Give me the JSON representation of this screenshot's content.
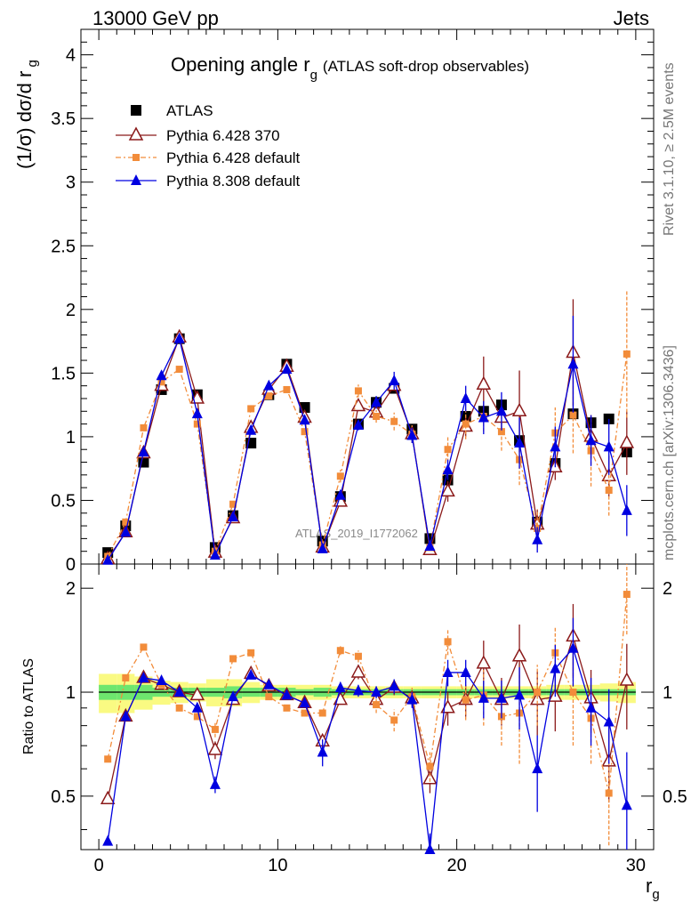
{
  "header": {
    "left": "13000 GeV pp",
    "right": "Jets"
  },
  "side": {
    "upper": "Rivet 3.1.10, ≥ 2.5M events",
    "lower": "mcplots.cern.ch [arXiv:1306.3436]"
  },
  "watermark": "ATLAS_2019_I1772062",
  "colors": {
    "atlas": "#000000",
    "py6_370": "#8b1a1a",
    "py6_default": "#f28c3a",
    "py8_default": "#0000e0",
    "band_inner": "#6ee66e",
    "band_outer": "#fafa82"
  },
  "chart_data": [
    {
      "type": "scatter",
      "title": "Opening angle r",
      "title_sub": "g",
      "title_note": "(ATLAS soft-drop observables)",
      "ylabel": "(1/σ) dσ/d r",
      "ylabel_sub": "g",
      "xlim": [
        -1,
        31
      ],
      "ylim": [
        0,
        4.2
      ],
      "yticks": [
        0,
        0.5,
        1,
        1.5,
        2,
        2.5,
        3,
        3.5,
        4
      ],
      "ytick_labels": [
        "0",
        "0.5",
        "1",
        "1.5",
        "2",
        "2.5",
        "3",
        "3.5",
        "4"
      ],
      "legend_position": "top-left",
      "x": [
        0.5,
        1.5,
        2.5,
        3.5,
        4.5,
        5.5,
        6.5,
        7.5,
        8.5,
        9.5,
        10.5,
        11.5,
        12.5,
        13.5,
        14.5,
        15.5,
        16.5,
        17.5,
        18.5,
        19.5,
        20.5,
        21.5,
        22.5,
        23.5,
        24.5,
        25.5,
        26.5,
        27.5,
        28.5,
        29.5
      ],
      "series": [
        {
          "name": "ATLAS",
          "marker": "square",
          "values": [
            0.09,
            0.3,
            0.8,
            1.37,
            1.77,
            1.33,
            0.13,
            0.38,
            0.95,
            1.33,
            1.57,
            1.23,
            0.18,
            0.53,
            1.1,
            1.27,
            1.38,
            1.06,
            0.2,
            0.66,
            1.16,
            1.2,
            1.25,
            0.97,
            0.33,
            0.79,
            1.18,
            1.11,
            1.14,
            0.88
          ],
          "errors": [
            0,
            0,
            0,
            0,
            0,
            0,
            0,
            0,
            0,
            0,
            0,
            0,
            0,
            0,
            0,
            0,
            0,
            0,
            0,
            0,
            0,
            0,
            0,
            0,
            0,
            0,
            0,
            0,
            0,
            0
          ]
        },
        {
          "name": "Pythia 6.428 370",
          "marker": "open-triangle",
          "values": [
            0.04,
            0.25,
            0.87,
            1.4,
            1.78,
            1.3,
            0.09,
            0.36,
            1.07,
            1.37,
            1.55,
            1.15,
            0.13,
            0.49,
            1.24,
            1.19,
            1.4,
            1.02,
            0.11,
            0.57,
            1.08,
            1.41,
            1.15,
            1.2,
            0.31,
            0.76,
            1.66,
            1.0,
            0.69,
            0.95
          ],
          "errors": [
            0,
            0,
            0,
            0,
            0,
            0,
            0,
            0,
            0,
            0,
            0,
            0,
            0,
            0,
            0,
            0.05,
            0,
            0,
            0,
            0.08,
            0.08,
            0.22,
            0.1,
            0.32,
            0.12,
            0.1,
            0.42,
            0.17,
            0.16,
            0.25
          ]
        },
        {
          "name": "Pythia 6.428 default",
          "marker": "small-square",
          "values": [
            0.06,
            0.33,
            1.07,
            1.43,
            1.53,
            1.1,
            0.1,
            0.47,
            1.22,
            1.32,
            1.37,
            1.04,
            0.15,
            0.69,
            1.36,
            1.16,
            1.12,
            1.02,
            0.13,
            0.9,
            1.1,
            1.16,
            1.04,
            0.82,
            0.28,
            1.03,
            1.17,
            0.89,
            0.58,
            1.65
          ],
          "errors": [
            0,
            0,
            0,
            0,
            0,
            0,
            0,
            0,
            0,
            0,
            0,
            0,
            0,
            0.05,
            0.05,
            0.05,
            0.07,
            0.07,
            0,
            0.1,
            0.12,
            0.12,
            0.15,
            0.2,
            0.15,
            0.2,
            0.3,
            0.28,
            0.2,
            0.5
          ]
        },
        {
          "name": "Pythia 8.308 default",
          "marker": "triangle",
          "values": [
            0.03,
            0.25,
            0.88,
            1.48,
            1.77,
            1.18,
            0.07,
            0.37,
            1.05,
            1.4,
            1.53,
            1.13,
            0.12,
            0.54,
            1.09,
            1.27,
            1.44,
            1.01,
            0.14,
            0.74,
            1.3,
            1.15,
            1.2,
            0.95,
            0.19,
            0.92,
            1.57,
            0.97,
            0.92,
            0.42
          ],
          "errors": [
            0,
            0,
            0,
            0,
            0,
            0,
            0,
            0,
            0,
            0,
            0,
            0,
            0,
            0,
            0.04,
            0.05,
            0.07,
            0.06,
            0,
            0.08,
            0.1,
            0.13,
            0.15,
            0.2,
            0.1,
            0.16,
            0.38,
            0.2,
            0.22,
            0.2
          ]
        }
      ]
    },
    {
      "type": "scatter",
      "ylabel": "Ratio to ATLAS",
      "xlabel": "r",
      "xlabel_sub": "g",
      "xlim": [
        -1,
        31
      ],
      "ylim": [
        0.35,
        2.35
      ],
      "log_scale_y": true,
      "yticks": [
        0.5,
        1,
        2
      ],
      "ytick_labels": [
        "0.5",
        "1",
        "2"
      ],
      "xticks": [
        0,
        10,
        20,
        30
      ],
      "xtick_labels": [
        "0",
        "10",
        "20",
        "30"
      ],
      "band_inner": [
        0.05,
        0.05,
        0.05,
        0.03,
        0.03,
        0.03,
        0.03,
        0.04,
        0.03,
        0.03,
        0.03,
        0.02,
        0.03,
        0.02,
        0.02,
        0.02,
        0.02,
        0.02,
        0.02,
        0.02,
        0.02,
        0.02,
        0.02,
        0.02,
        0.02,
        0.02,
        0.02,
        0.02,
        0.02,
        0.02
      ],
      "band_outer": [
        0.13,
        0.13,
        0.11,
        0.08,
        0.07,
        0.06,
        0.09,
        0.09,
        0.07,
        0.05,
        0.05,
        0.05,
        0.05,
        0.04,
        0.04,
        0.04,
        0.04,
        0.04,
        0.04,
        0.04,
        0.04,
        0.04,
        0.04,
        0.04,
        0.04,
        0.05,
        0.05,
        0.05,
        0.06,
        0.07
      ],
      "series": [
        {
          "name": "Pythia 6.428 370",
          "values": [
            0.49,
            0.85,
            1.1,
            1.05,
            1.0,
            0.98,
            0.68,
            0.95,
            1.13,
            1.04,
            0.98,
            0.93,
            0.72,
            0.95,
            1.14,
            0.95,
            1.03,
            0.96,
            0.56,
            0.9,
            0.95,
            1.21,
            0.95,
            1.27,
            0.95,
            0.97,
            1.45,
            0.96,
            0.63,
            1.08
          ],
          "errors": [
            0,
            0,
            0,
            0,
            0,
            0,
            0.04,
            0,
            0,
            0,
            0,
            0,
            0,
            0.03,
            0.05,
            0.04,
            0.05,
            0.05,
            0.05,
            0.1,
            0.1,
            0.2,
            0.15,
            0.3,
            0.2,
            0.2,
            0.35,
            0.2,
            0.15,
            0.3
          ]
        },
        {
          "name": "Pythia 6.428 default",
          "values": [
            0.64,
            1.1,
            1.35,
            1.05,
            0.9,
            0.85,
            0.78,
            1.25,
            1.3,
            0.97,
            0.9,
            0.87,
            0.87,
            1.32,
            1.27,
            0.92,
            0.83,
            0.97,
            0.61,
            1.4,
            0.95,
            0.98,
            0.85,
            0.87,
            1.0,
            1.3,
            1.0,
            0.84,
            0.51,
            1.92
          ],
          "errors": [
            0,
            0,
            0,
            0,
            0,
            0,
            0.04,
            0,
            0,
            0,
            0,
            0,
            0,
            0.04,
            0.05,
            0.05,
            0.06,
            0.06,
            0.06,
            0.12,
            0.12,
            0.18,
            0.15,
            0.25,
            0.2,
            0.25,
            0.3,
            0.22,
            0.15,
            0.45
          ]
        },
        {
          "name": "Pythia 8.308 default",
          "values": [
            0.37,
            0.85,
            1.1,
            1.08,
            1.0,
            0.9,
            0.54,
            0.97,
            1.12,
            1.05,
            0.98,
            0.93,
            0.67,
            1.03,
            1.01,
            1.0,
            1.04,
            0.95,
            0.35,
            1.14,
            1.14,
            0.96,
            0.96,
            0.98,
            0.6,
            1.17,
            1.34,
            0.9,
            0.82,
            0.47
          ],
          "errors": [
            0,
            0,
            0,
            0,
            0,
            0,
            0.03,
            0,
            0,
            0,
            0,
            0,
            0.06,
            0.04,
            0.04,
            0.04,
            0.05,
            0.05,
            0.04,
            0.1,
            0.1,
            0.12,
            0.12,
            0.2,
            0.15,
            0.2,
            0.3,
            0.2,
            0.2,
            0.2
          ]
        }
      ]
    }
  ]
}
